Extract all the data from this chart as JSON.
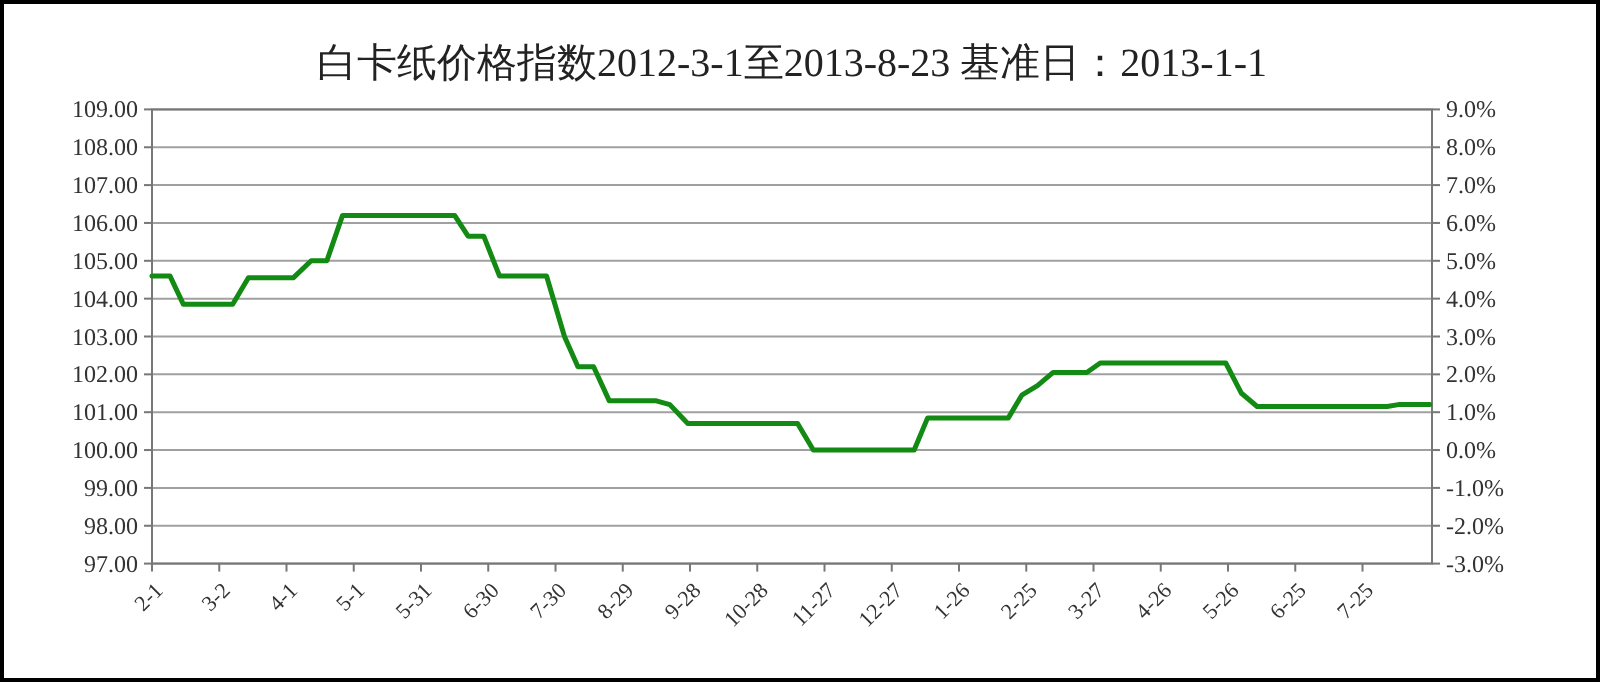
{
  "chart_data": {
    "type": "line",
    "title": "白卡纸价格指数2012-3-1至2013-8-23 基准日：2013-1-1",
    "x": [
      "2012-02-01",
      "2012-02-09",
      "2012-02-15",
      "2012-03-08",
      "2012-03-15",
      "2012-04-04",
      "2012-04-12",
      "2012-04-19",
      "2012-04-26",
      "2012-06-15",
      "2012-06-21",
      "2012-06-28",
      "2012-07-05",
      "2012-07-26",
      "2012-08-03",
      "2012-08-09",
      "2012-08-16",
      "2012-08-23",
      "2012-09-13",
      "2012-09-19",
      "2012-09-27",
      "2012-11-15",
      "2012-11-22",
      "2013-01-06",
      "2013-01-12",
      "2013-02-17",
      "2013-02-23",
      "2013-03-02",
      "2013-03-09",
      "2013-03-24",
      "2013-03-30",
      "2013-05-25",
      "2013-06-01",
      "2013-06-08",
      "2013-08-05",
      "2013-08-10",
      "2013-08-24"
    ],
    "values": [
      104.6,
      104.6,
      103.85,
      103.85,
      104.55,
      104.55,
      105.0,
      105.0,
      106.2,
      106.2,
      105.65,
      105.65,
      104.6,
      104.6,
      103.0,
      102.2,
      102.2,
      101.3,
      101.3,
      101.2,
      100.7,
      100.7,
      100.0,
      100.0,
      100.85,
      100.85,
      101.45,
      101.7,
      102.05,
      102.05,
      102.3,
      102.3,
      101.5,
      101.15,
      101.15,
      101.2,
      101.2
    ],
    "color": "#138a13",
    "line_style": "solid",
    "marker": "none",
    "grid": "y",
    "xlim": [
      "2012-02-01",
      "2013-08-25"
    ],
    "xticks": [
      {
        "value": "2012-02-01",
        "label": "2-1"
      },
      {
        "value": "2012-03-02",
        "label": "3-2"
      },
      {
        "value": "2012-04-01",
        "label": "4-1"
      },
      {
        "value": "2012-05-01",
        "label": "5-1"
      },
      {
        "value": "2012-05-31",
        "label": "5-31"
      },
      {
        "value": "2012-06-30",
        "label": "6-30"
      },
      {
        "value": "2012-07-30",
        "label": "7-30"
      },
      {
        "value": "2012-08-29",
        "label": "8-29"
      },
      {
        "value": "2012-09-28",
        "label": "9-28"
      },
      {
        "value": "2012-10-28",
        "label": "10-28"
      },
      {
        "value": "2012-11-27",
        "label": "11-27"
      },
      {
        "value": "2012-12-27",
        "label": "12-27"
      },
      {
        "value": "2013-01-26",
        "label": "1-26"
      },
      {
        "value": "2013-02-25",
        "label": "2-25"
      },
      {
        "value": "2013-03-27",
        "label": "3-27"
      },
      {
        "value": "2013-04-26",
        "label": "4-26"
      },
      {
        "value": "2013-05-26",
        "label": "5-26"
      },
      {
        "value": "2013-06-25",
        "label": "6-25"
      },
      {
        "value": "2013-07-25",
        "label": "7-25"
      }
    ],
    "ylim": [
      97,
      109
    ],
    "yticks": [
      {
        "value": 97,
        "label": "97.00"
      },
      {
        "value": 98,
        "label": "98.00"
      },
      {
        "value": 99,
        "label": "99.00"
      },
      {
        "value": 100,
        "label": "100.00"
      },
      {
        "value": 101,
        "label": "101.00"
      },
      {
        "value": 102,
        "label": "102.00"
      },
      {
        "value": 103,
        "label": "103.00"
      },
      {
        "value": 104,
        "label": "104.00"
      },
      {
        "value": 105,
        "label": "105.00"
      },
      {
        "value": 106,
        "label": "106.00"
      },
      {
        "value": 107,
        "label": "107.00"
      },
      {
        "value": 108,
        "label": "108.00"
      },
      {
        "value": 109,
        "label": "109.00"
      }
    ],
    "y2lim": [
      -3,
      9
    ],
    "y2ticks": [
      {
        "value": -3,
        "label": "-3.0%"
      },
      {
        "value": -2,
        "label": "-2.0%"
      },
      {
        "value": -1,
        "label": "-1.0%"
      },
      {
        "value": 0,
        "label": "0.0%"
      },
      {
        "value": 1,
        "label": "1.0%"
      },
      {
        "value": 2,
        "label": "2.0%"
      },
      {
        "value": 3,
        "label": "3.0%"
      },
      {
        "value": 4,
        "label": "4.0%"
      },
      {
        "value": 5,
        "label": "5.0%"
      },
      {
        "value": 6,
        "label": "6.0%"
      },
      {
        "value": 7,
        "label": "7.0%"
      },
      {
        "value": 8,
        "label": "8.0%"
      },
      {
        "value": 9,
        "label": "9.0%"
      }
    ]
  }
}
